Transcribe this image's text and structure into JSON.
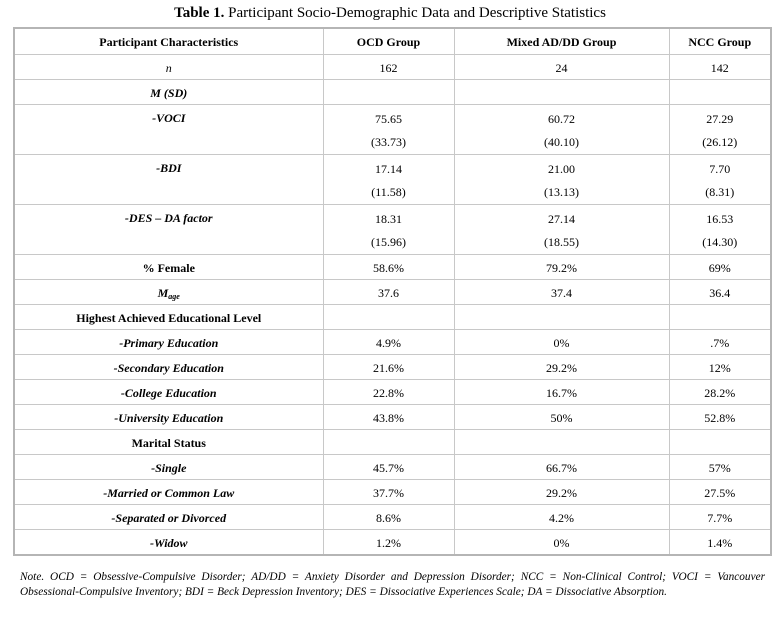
{
  "title": {
    "label": "Table 1.",
    "text": "Participant Socio-Demographic Data and Descriptive Statistics"
  },
  "table": {
    "headers": [
      "Participant Characteristics",
      "OCD Group",
      "Mixed AD/DD Group",
      "NCC Group"
    ],
    "rows": [
      {
        "label": "n",
        "style": "i",
        "values": [
          "162",
          "24",
          "142"
        ]
      },
      {
        "label": "M (SD)",
        "style": "bi",
        "values": [
          "",
          "",
          ""
        ]
      },
      {
        "label": "-VOCI",
        "style": "bi",
        "values": [
          "75.65",
          "60.72",
          "27.29"
        ],
        "sd": [
          "(33.73)",
          "(40.10)",
          "(26.12)"
        ]
      },
      {
        "label": "-BDI",
        "style": "bi",
        "values": [
          "17.14",
          "21.00",
          "7.70"
        ],
        "sd": [
          "(11.58)",
          "(13.13)",
          "(8.31)"
        ]
      },
      {
        "label": "-DES – DA factor",
        "style": "bi",
        "values": [
          "18.31",
          "27.14",
          "16.53"
        ],
        "sd": [
          "(15.96)",
          "(18.55)",
          "(14.30)"
        ]
      },
      {
        "label": "% Female",
        "style": "b",
        "values": [
          "58.6%",
          "79.2%",
          "69%"
        ]
      },
      {
        "label": "M",
        "sub": "age",
        "style": "bi",
        "values": [
          "37.6",
          "37.4",
          "36.4"
        ]
      },
      {
        "label": "Highest Achieved Educational Level",
        "style": "b",
        "values": [
          "",
          "",
          ""
        ]
      },
      {
        "label": "-Primary Education",
        "style": "bi",
        "values": [
          "4.9%",
          "0%",
          ".7%"
        ]
      },
      {
        "label": "-Secondary Education",
        "style": "bi",
        "values": [
          "21.6%",
          "29.2%",
          "12%"
        ]
      },
      {
        "label": "-College Education",
        "style": "bi",
        "values": [
          "22.8%",
          "16.7%",
          "28.2%"
        ]
      },
      {
        "label": "-University Education",
        "style": "bi",
        "values": [
          "43.8%",
          "50%",
          "52.8%"
        ]
      },
      {
        "label": "Marital Status",
        "style": "b",
        "values": [
          "",
          "",
          ""
        ]
      },
      {
        "label": "-Single",
        "style": "bi",
        "values": [
          "45.7%",
          "66.7%",
          "57%"
        ]
      },
      {
        "label": "-Married or Common Law",
        "style": "bi",
        "values": [
          "37.7%",
          "29.2%",
          "27.5%"
        ]
      },
      {
        "label": "-Separated or Divorced",
        "style": "bi",
        "values": [
          "8.6%",
          "4.2%",
          "7.7%"
        ]
      },
      {
        "label": "-Widow",
        "style": "bi",
        "values": [
          "1.2%",
          "0%",
          "1.4%"
        ]
      }
    ]
  },
  "note": "Note. OCD = Obsessive-Compulsive Disorder; AD/DD = Anxiety Disorder and Depression Disorder; NCC = Non-Clinical Control; VOCI = Vancouver Obsessional-Compulsive Inventory; BDI = Beck Depression Inventory; DES = Dissociative Experiences Scale; DA = Dissociative Absorption."
}
